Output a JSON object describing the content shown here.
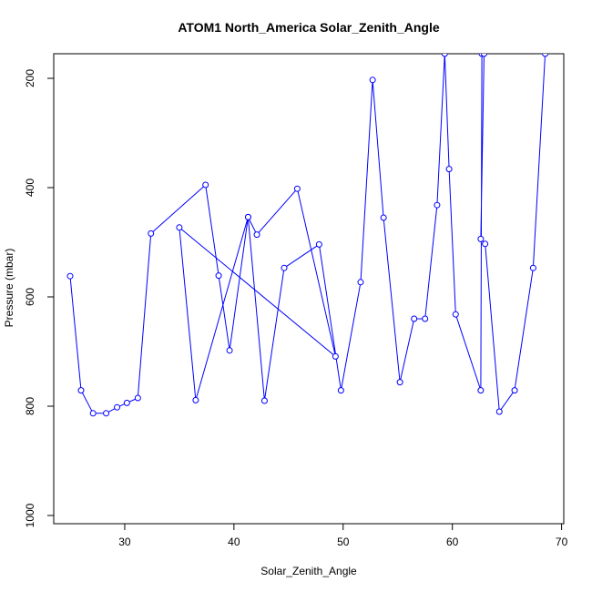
{
  "chart_data": {
    "type": "line",
    "title": "ATOM1 North_America Solar_Zenith_Angle",
    "xlabel": "Solar_Zenith_Angle",
    "ylabel": "Pressure (mbar)",
    "xlim": [
      23.5,
      70.2
    ],
    "ylim": [
      1015,
      155
    ],
    "y_reversed": true,
    "x_ticks": [
      30,
      40,
      50,
      60,
      70
    ],
    "y_ticks": [
      200,
      400,
      600,
      800,
      1000
    ],
    "grid": false,
    "line_color": "#0000ff",
    "marker": "open-circle",
    "series": [
      {
        "x": [
          25.0,
          26.0,
          27.1,
          28.3,
          29.3,
          30.2,
          31.2,
          32.4,
          37.4,
          38.6,
          39.6,
          41.3,
          42.1,
          45.8,
          49.3,
          35.0,
          36.5,
          41.3,
          42.8,
          44.6,
          47.8,
          49.8,
          51.6,
          52.7,
          53.7,
          55.2,
          56.5,
          57.5,
          58.6,
          59.3,
          59.7,
          60.3,
          62.6,
          62.7,
          62.9,
          62.6,
          63.0,
          64.3,
          65.7,
          67.4,
          68.5
        ],
        "y": [
          562,
          771,
          813,
          813,
          802,
          794,
          785,
          484,
          395,
          561,
          698,
          454,
          486,
          402,
          709,
          473,
          789,
          454,
          790,
          547,
          504,
          771,
          573,
          203,
          455,
          756,
          640,
          640,
          432,
          155,
          366,
          632,
          771,
          155,
          155,
          494,
          503,
          810,
          771,
          547,
          155
        ]
      }
    ]
  }
}
